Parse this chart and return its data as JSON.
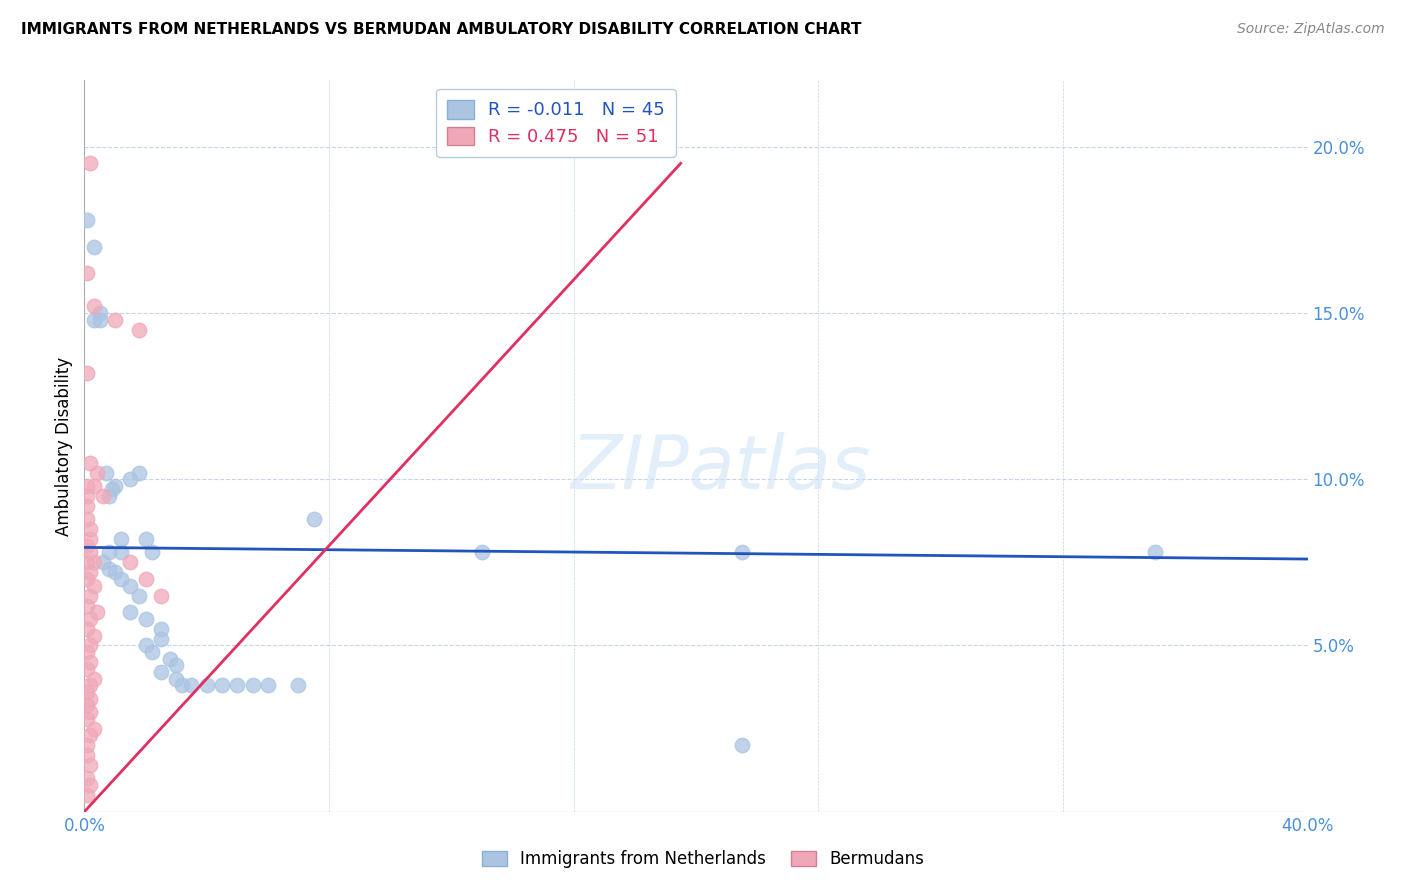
{
  "title": "IMMIGRANTS FROM NETHERLANDS VS BERMUDAN AMBULATORY DISABILITY CORRELATION CHART",
  "source": "Source: ZipAtlas.com",
  "ylabel": "Ambulatory Disability",
  "watermark": "ZIPatlas",
  "xlim": [
    0.0,
    0.4
  ],
  "ylim": [
    0.0,
    0.22
  ],
  "xticks": [
    0.0,
    0.08,
    0.16,
    0.24,
    0.32,
    0.4
  ],
  "xtick_labels": [
    "0.0%",
    "",
    "",
    "",
    "",
    "40.0%"
  ],
  "yticks": [
    0.05,
    0.1,
    0.15,
    0.2
  ],
  "ytick_labels": [
    "5.0%",
    "10.0%",
    "15.0%",
    "20.0%"
  ],
  "legend_blue_r": "-0.011",
  "legend_blue_n": "45",
  "legend_pink_r": "0.475",
  "legend_pink_n": "51",
  "legend_blue_label": "Immigrants from Netherlands",
  "legend_pink_label": "Bermudans",
  "blue_color": "#aac4e2",
  "pink_color": "#f0a8b8",
  "blue_line_color": "#2255bb",
  "pink_line_color": "#e03060",
  "blue_scatter": [
    [
      0.001,
      0.178
    ],
    [
      0.003,
      0.17
    ],
    [
      0.005,
      0.15
    ],
    [
      0.003,
      0.148
    ],
    [
      0.005,
      0.148
    ],
    [
      0.007,
      0.102
    ],
    [
      0.01,
      0.098
    ],
    [
      0.009,
      0.097
    ],
    [
      0.008,
      0.095
    ],
    [
      0.015,
      0.1
    ],
    [
      0.018,
      0.102
    ],
    [
      0.012,
      0.082
    ],
    [
      0.02,
      0.082
    ],
    [
      0.008,
      0.078
    ],
    [
      0.012,
      0.078
    ],
    [
      0.022,
      0.078
    ],
    [
      0.006,
      0.075
    ],
    [
      0.008,
      0.073
    ],
    [
      0.01,
      0.072
    ],
    [
      0.012,
      0.07
    ],
    [
      0.015,
      0.068
    ],
    [
      0.018,
      0.065
    ],
    [
      0.015,
      0.06
    ],
    [
      0.02,
      0.058
    ],
    [
      0.025,
      0.055
    ],
    [
      0.025,
      0.052
    ],
    [
      0.02,
      0.05
    ],
    [
      0.022,
      0.048
    ],
    [
      0.028,
      0.046
    ],
    [
      0.03,
      0.044
    ],
    [
      0.025,
      0.042
    ],
    [
      0.03,
      0.04
    ],
    [
      0.032,
      0.038
    ],
    [
      0.035,
      0.038
    ],
    [
      0.04,
      0.038
    ],
    [
      0.045,
      0.038
    ],
    [
      0.05,
      0.038
    ],
    [
      0.055,
      0.038
    ],
    [
      0.06,
      0.038
    ],
    [
      0.07,
      0.038
    ],
    [
      0.075,
      0.088
    ],
    [
      0.13,
      0.078
    ],
    [
      0.35,
      0.078
    ],
    [
      0.215,
      0.02
    ],
    [
      0.215,
      0.078
    ]
  ],
  "pink_scatter": [
    [
      0.002,
      0.195
    ],
    [
      0.001,
      0.162
    ],
    [
      0.003,
      0.152
    ],
    [
      0.01,
      0.148
    ],
    [
      0.018,
      0.145
    ],
    [
      0.001,
      0.132
    ],
    [
      0.002,
      0.105
    ],
    [
      0.004,
      0.102
    ],
    [
      0.001,
      0.098
    ],
    [
      0.003,
      0.098
    ],
    [
      0.001,
      0.095
    ],
    [
      0.006,
      0.095
    ],
    [
      0.001,
      0.092
    ],
    [
      0.001,
      0.088
    ],
    [
      0.002,
      0.085
    ],
    [
      0.002,
      0.082
    ],
    [
      0.001,
      0.08
    ],
    [
      0.002,
      0.078
    ],
    [
      0.001,
      0.075
    ],
    [
      0.003,
      0.075
    ],
    [
      0.002,
      0.072
    ],
    [
      0.001,
      0.07
    ],
    [
      0.003,
      0.068
    ],
    [
      0.002,
      0.065
    ],
    [
      0.001,
      0.062
    ],
    [
      0.004,
      0.06
    ],
    [
      0.002,
      0.058
    ],
    [
      0.001,
      0.055
    ],
    [
      0.003,
      0.053
    ],
    [
      0.002,
      0.05
    ],
    [
      0.001,
      0.048
    ],
    [
      0.002,
      0.045
    ],
    [
      0.001,
      0.043
    ],
    [
      0.003,
      0.04
    ],
    [
      0.002,
      0.038
    ],
    [
      0.001,
      0.036
    ],
    [
      0.002,
      0.034
    ],
    [
      0.001,
      0.032
    ],
    [
      0.002,
      0.03
    ],
    [
      0.001,
      0.028
    ],
    [
      0.003,
      0.025
    ],
    [
      0.002,
      0.023
    ],
    [
      0.001,
      0.02
    ],
    [
      0.001,
      0.017
    ],
    [
      0.002,
      0.014
    ],
    [
      0.001,
      0.01
    ],
    [
      0.002,
      0.008
    ],
    [
      0.001,
      0.005
    ],
    [
      0.015,
      0.075
    ],
    [
      0.02,
      0.07
    ],
    [
      0.025,
      0.065
    ]
  ],
  "blue_trend_x": [
    0.0,
    0.4
  ],
  "blue_trend_y": [
    0.0795,
    0.076
  ],
  "pink_trend_x": [
    0.0,
    0.195
  ],
  "pink_trend_y": [
    0.0,
    0.195
  ]
}
